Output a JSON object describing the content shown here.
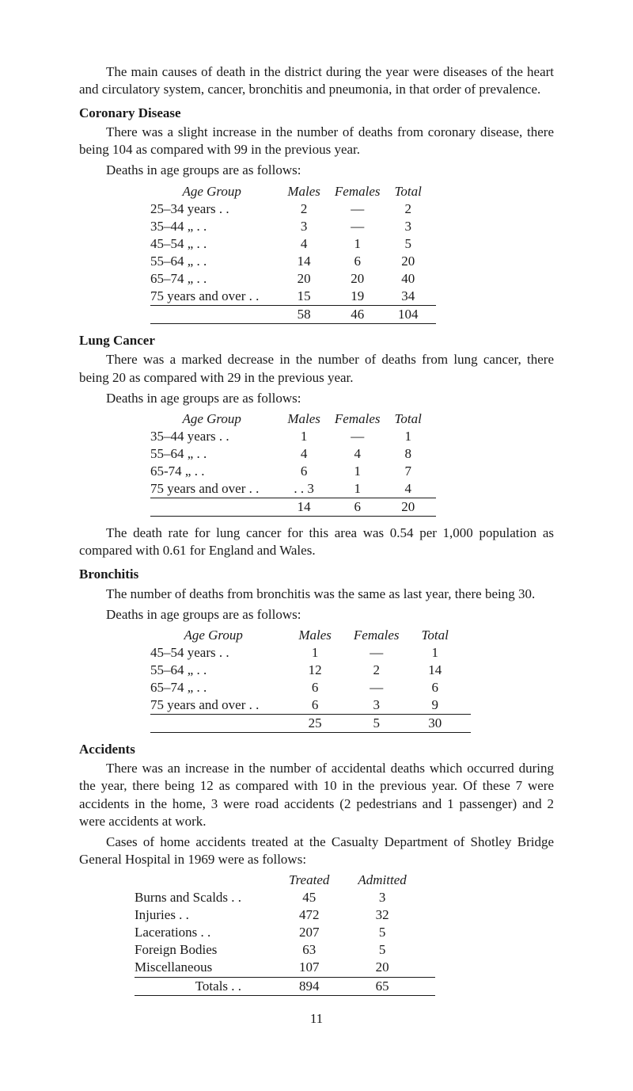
{
  "intro_para": "The main causes of death in the district during the year were diseases of the heart and circulatory system, cancer, bronchitis and pneumonia, in that order of prevalence.",
  "coronary": {
    "title": "Coronary Disease",
    "para1": "There was a slight increase in the number of deaths from coronary disease, there being 104 as compared with 99 in the previous year.",
    "para2": "Deaths in age groups are as follows:",
    "headers": {
      "c1": "Age Group",
      "c2": "Males",
      "c3": "Females",
      "c4": "Total"
    },
    "rows": [
      {
        "label": "25–34 years . .",
        "m": "2",
        "f": "—",
        "t": "2"
      },
      {
        "label": "35–44  „      . .",
        "m": "3",
        "f": "—",
        "t": "3"
      },
      {
        "label": "45–54  „      . .",
        "m": "4",
        "f": "1",
        "t": "5"
      },
      {
        "label": "55–64  „      . .",
        "m": "14",
        "f": "6",
        "t": "20"
      },
      {
        "label": "65–74  „      . .",
        "m": "20",
        "f": "20",
        "t": "40"
      },
      {
        "label": "75 years and over . .",
        "m": "15",
        "f": "19",
        "t": "34"
      }
    ],
    "totals": {
      "m": "58",
      "f": "46",
      "t": "104"
    }
  },
  "lung": {
    "title": "Lung Cancer",
    "para1": "There was a marked decrease in the number of deaths from lung cancer, there being 20 as compared with 29 in the previous year.",
    "para2": "Deaths in age groups are as follows:",
    "headers": {
      "c1": "Age Group",
      "c2": "Males",
      "c3": "Females",
      "c4": "Total"
    },
    "rows": [
      {
        "label": "35–44 years . .",
        "m": "1",
        "f": "—",
        "t": "1"
      },
      {
        "label": "55–64  „      . .",
        "m": "4",
        "f": "4",
        "t": "8"
      },
      {
        "label": "65-74  „      . .",
        "m": "6",
        "f": "1",
        "t": "7"
      },
      {
        "label": "75 years and over . .",
        "m": ". .  3",
        "f": "1",
        "t": "4"
      }
    ],
    "totals": {
      "m": "14",
      "f": "6",
      "t": "20"
    }
  },
  "lung_para3": "The death rate for lung cancer for this area was 0.54 per 1,000 population as compared with 0.61 for England and Wales.",
  "bronchitis": {
    "title": "Bronchitis",
    "para1": "The number of deaths from bronchitis was the same as last year, there being 30.",
    "para2": "Deaths in age groups are as follows:",
    "headers": {
      "c1": "Age Group",
      "c2": "Males",
      "c3": "Females",
      "c4": "Total"
    },
    "rows": [
      {
        "label": "45–54 years . .",
        "m": "1",
        "f": "—",
        "t": "1"
      },
      {
        "label": "55–64  „      . .",
        "m": "12",
        "f": "2",
        "t": "14"
      },
      {
        "label": "65–74  „      . .",
        "m": "6",
        "f": "—",
        "t": "6"
      },
      {
        "label": "75 years and over . .",
        "m": "6",
        "f": "3",
        "t": "9"
      }
    ],
    "totals": {
      "m": "25",
      "f": "5",
      "t": "30"
    }
  },
  "accidents": {
    "title": "Accidents",
    "para1": "There was an increase in the number of accidental deaths which occurred during the year, there being 12 as compared with 10 in the previous year. Of these 7 were accidents in the home, 3 were road accidents (2 pedestrians and 1 passenger) and 2 were accidents at work.",
    "para2": "Cases of home accidents treated at the Casualty Department of Shotley Bridge General Hospital in 1969 were as follows:",
    "headers": {
      "c2": "Treated",
      "c3": "Admitted"
    },
    "rows": [
      {
        "label": "Burns and Scalds    . .",
        "t": "45",
        "a": "3"
      },
      {
        "label": "Injuries       . .",
        "t": "472",
        "a": "32"
      },
      {
        "label": "Lacerations . .",
        "t": "207",
        "a": "5"
      },
      {
        "label": "Foreign Bodies",
        "t": "63",
        "a": "5"
      },
      {
        "label": "Miscellaneous",
        "t": "107",
        "a": "20"
      }
    ],
    "totals_label": "Totals   . .",
    "totals": {
      "t": "894",
      "a": "65"
    }
  },
  "page_number": "11"
}
